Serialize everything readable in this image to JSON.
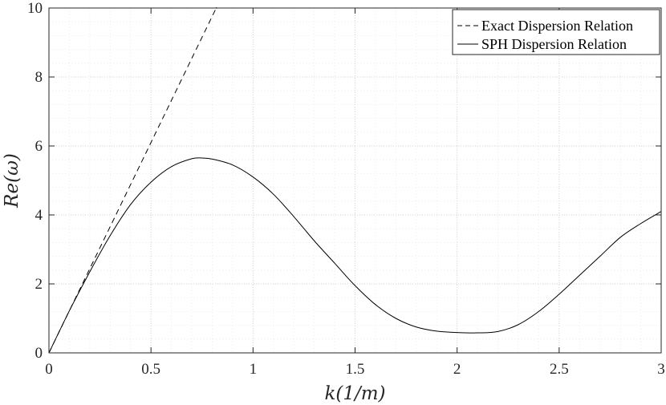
{
  "chart_data": {
    "type": "line",
    "xlabel": "k(1/m)",
    "ylabel": "Re(ω)",
    "xlim": [
      0,
      3
    ],
    "ylim": [
      0,
      10
    ],
    "x_ticks": [
      0,
      0.5,
      1,
      1.5,
      2,
      2.5,
      3
    ],
    "y_ticks": [
      0,
      2,
      4,
      6,
      8,
      10
    ],
    "x_tick_labels": [
      "0",
      "0.5",
      "1",
      "1.5",
      "2",
      "2.5",
      "3"
    ],
    "y_tick_labels": [
      "0",
      "2",
      "4",
      "6",
      "8",
      "10"
    ],
    "grid": "on (major and minor, dotted)",
    "legend_position": "top-right",
    "series": [
      {
        "name": "Exact Dispersion Relation",
        "style": "dashed",
        "color": "#000000",
        "x": [
          0,
          0.2,
          0.4,
          0.6,
          0.8,
          0.82
        ],
        "y": [
          0,
          2.44,
          4.88,
          7.32,
          9.76,
          10.0
        ]
      },
      {
        "name": "SPH Dispersion Relation",
        "style": "solid",
        "color": "#000000",
        "x": [
          0,
          0.1,
          0.2,
          0.3,
          0.4,
          0.5,
          0.6,
          0.7,
          0.75,
          0.8,
          0.9,
          1.0,
          1.1,
          1.2,
          1.3,
          1.4,
          1.5,
          1.6,
          1.7,
          1.8,
          1.9,
          2.0,
          2.1,
          2.2,
          2.3,
          2.4,
          2.5,
          2.6,
          2.7,
          2.8,
          2.9,
          3.0
        ],
        "y": [
          0,
          1.22,
          2.35,
          3.4,
          4.3,
          4.95,
          5.4,
          5.63,
          5.65,
          5.62,
          5.45,
          5.1,
          4.6,
          3.95,
          3.25,
          2.6,
          1.95,
          1.4,
          1.0,
          0.75,
          0.63,
          0.59,
          0.58,
          0.62,
          0.82,
          1.2,
          1.7,
          2.25,
          2.8,
          3.35,
          3.75,
          4.1
        ]
      }
    ]
  }
}
